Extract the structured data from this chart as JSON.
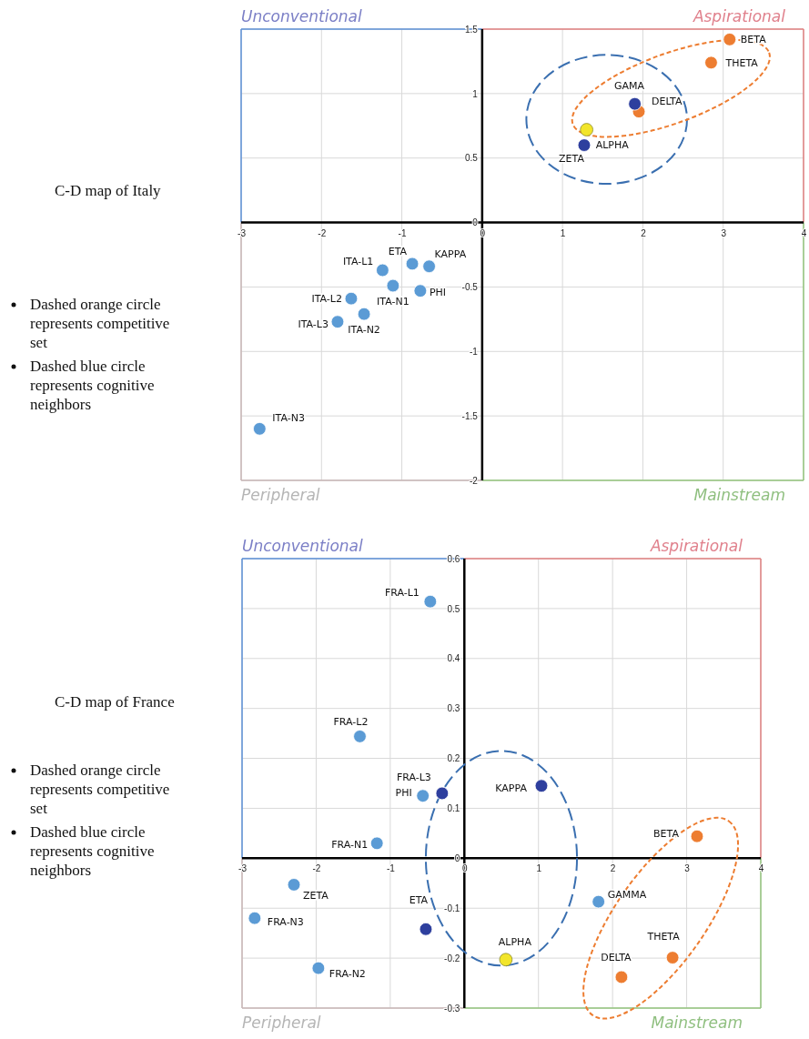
{
  "chart_data": [
    {
      "type": "scatter",
      "title": "C-D map of Italy",
      "annotations": [
        "Unconventional",
        "Aspirational",
        "Peripheral",
        "Mainstream",
        "Dashed orange circle represents competitive set",
        "Dashed blue circle represents cognitive neighbors"
      ],
      "xlim": [
        -3,
        4
      ],
      "xticks": [
        -3,
        -2,
        -1,
        0,
        1,
        2,
        3,
        4
      ],
      "ylim": [
        -2,
        1.5
      ],
      "yticks": [
        -2,
        -1.5,
        -1,
        -0.5,
        0,
        0.5,
        1,
        1.5
      ],
      "grid": true,
      "marker": "circle",
      "series": [
        {
          "name": "BETA",
          "color": "#ed7d31",
          "x": [
            3.08
          ],
          "values": [
            1.42
          ]
        },
        {
          "name": "THETA",
          "color": "#ed7d31",
          "x": [
            2.85
          ],
          "values": [
            1.24
          ]
        },
        {
          "name": "DELTA",
          "color": "#ed7d31",
          "x": [
            1.95
          ],
          "values": [
            0.86
          ]
        },
        {
          "name": "GAMA",
          "color": "#2e3f9e",
          "x": [
            1.9
          ],
          "values": [
            0.92
          ]
        },
        {
          "name": "ALPHA",
          "color": "#f2e52a",
          "x": [
            1.3
          ],
          "values": [
            0.72
          ]
        },
        {
          "name": "ZETA",
          "color": "#2e3f9e",
          "x": [
            1.27
          ],
          "values": [
            0.6
          ]
        },
        {
          "name": "KAPPA",
          "color": "#5b9bd5",
          "x": [
            -0.66
          ],
          "values": [
            -0.34
          ]
        },
        {
          "name": "ETA",
          "color": "#5b9bd5",
          "x": [
            -0.87
          ],
          "values": [
            -0.32
          ]
        },
        {
          "name": "ITA-L1",
          "color": "#5b9bd5",
          "x": [
            -1.24
          ],
          "values": [
            -0.37
          ]
        },
        {
          "name": "ITA-N1",
          "color": "#5b9bd5",
          "x": [
            -1.11
          ],
          "values": [
            -0.49
          ]
        },
        {
          "name": "PHI",
          "color": "#5b9bd5",
          "x": [
            -0.77
          ],
          "values": [
            -0.53
          ]
        },
        {
          "name": "ITA-L2",
          "color": "#5b9bd5",
          "x": [
            -1.63
          ],
          "values": [
            -0.59
          ]
        },
        {
          "name": "ITA-N2",
          "color": "#5b9bd5",
          "x": [
            -1.47
          ],
          "values": [
            -0.71
          ]
        },
        {
          "name": "ITA-L3",
          "color": "#5b9bd5",
          "x": [
            -1.8
          ],
          "values": [
            -0.77
          ]
        },
        {
          "name": "ITA-N3",
          "color": "#5b9bd5",
          "x": [
            -2.77
          ],
          "values": [
            -1.6
          ]
        }
      ]
    },
    {
      "type": "scatter",
      "title": "C-D map of France",
      "annotations": [
        "Unconventional",
        "Aspirational",
        "Peripheral",
        "Mainstream",
        "Dashed orange circle represents competitive set",
        "Dashed blue circle represents cognitive neighbors"
      ],
      "xlim": [
        -3,
        4
      ],
      "xticks": [
        -3,
        -2,
        -1,
        0,
        1,
        2,
        3,
        4
      ],
      "ylim": [
        -0.3,
        0.6
      ],
      "yticks": [
        -0.3,
        -0.2,
        -0.1,
        0,
        0.1,
        0.2,
        0.3,
        0.4,
        0.5,
        0.6
      ],
      "grid": true,
      "marker": "circle",
      "series": [
        {
          "name": "FRA-L1",
          "color": "#5b9bd5",
          "x": [
            -0.46
          ],
          "values": [
            0.514
          ]
        },
        {
          "name": "FRA-L2",
          "color": "#5b9bd5",
          "x": [
            -1.41
          ],
          "values": [
            0.244
          ]
        },
        {
          "name": "FRA-L3",
          "color": "#2e3f9e",
          "x": [
            -0.3
          ],
          "values": [
            0.13
          ]
        },
        {
          "name": "PHI",
          "color": "#5b9bd5",
          "x": [
            -0.56
          ],
          "values": [
            0.125
          ]
        },
        {
          "name": "KAPPA",
          "color": "#2e3f9e",
          "x": [
            1.04
          ],
          "values": [
            0.145
          ]
        },
        {
          "name": "FRA-N1",
          "color": "#5b9bd5",
          "x": [
            -1.18
          ],
          "values": [
            0.03
          ]
        },
        {
          "name": "BETA",
          "color": "#ed7d31",
          "x": [
            3.14
          ],
          "values": [
            0.044
          ]
        },
        {
          "name": "ZETA",
          "color": "#5b9bd5",
          "x": [
            -2.3
          ],
          "values": [
            -0.053
          ]
        },
        {
          "name": "FRA-N3",
          "color": "#5b9bd5",
          "x": [
            -2.83
          ],
          "values": [
            -0.12
          ]
        },
        {
          "name": "ETA",
          "color": "#2e3f9e",
          "x": [
            -0.52
          ],
          "values": [
            -0.142
          ]
        },
        {
          "name": "GAMMA",
          "color": "#5b9bd5",
          "x": [
            1.81
          ],
          "values": [
            -0.087
          ]
        },
        {
          "name": "ALPHA",
          "color": "#f2e52a",
          "x": [
            0.56
          ],
          "values": [
            -0.203
          ]
        },
        {
          "name": "THETA",
          "color": "#ed7d31",
          "x": [
            2.81
          ],
          "values": [
            -0.199
          ]
        },
        {
          "name": "DELTA",
          "color": "#ed7d31",
          "x": [
            2.12
          ],
          "values": [
            -0.238
          ]
        },
        {
          "name": "FRA-N2",
          "color": "#5b9bd5",
          "x": [
            -1.97
          ],
          "values": [
            -0.22
          ]
        }
      ]
    }
  ]
}
